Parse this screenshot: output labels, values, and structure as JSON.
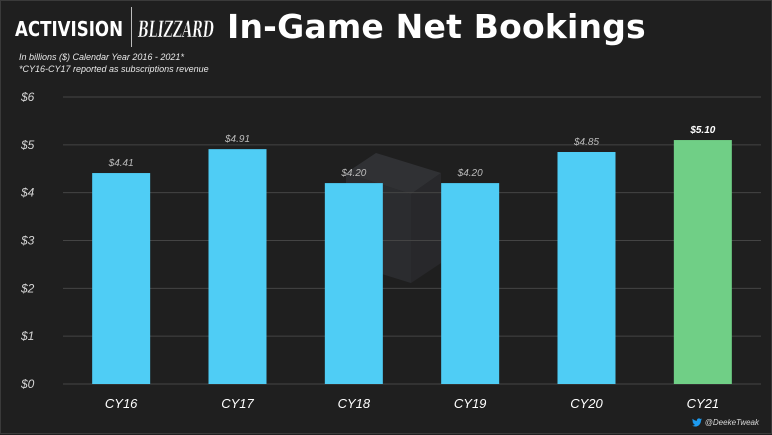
{
  "header": {
    "logo_left_text": "ACTIVISION",
    "logo_right_text": "BLIZZARD",
    "title": "In-Game Net Bookings",
    "subtitle_1": "In billions ($) Calendar Year 2016 - 2021*",
    "subtitle_2": "*CY16-CY17 reported as subscriptions revenue"
  },
  "credit": {
    "text": "@DeekeTweak",
    "icon": "twitter-icon"
  },
  "colors": {
    "background": "#1f1f1f",
    "bar": "#4fcdf5",
    "bar_highlight": "#70cf86",
    "grid": "#444444",
    "axis_label": "#d6d6d6",
    "bar_label": "#bbbbbb",
    "bar_label_highlight": "#ffffff"
  },
  "chart_data": {
    "type": "bar",
    "categories": [
      "CY16",
      "CY17",
      "CY18",
      "CY19",
      "CY20",
      "CY21"
    ],
    "values": [
      4.41,
      4.91,
      4.2,
      4.2,
      4.85,
      5.1
    ],
    "data_labels": [
      "$4.41",
      "$4.91",
      "$4.20",
      "$4.20",
      "$4.85",
      "$5.10"
    ],
    "highlight_index": 5,
    "title": "In-Game Net Bookings",
    "xlabel": "",
    "ylabel": "",
    "ylim": [
      0,
      6
    ],
    "yticks": [
      0,
      1,
      2,
      3,
      4,
      5,
      6
    ],
    "ytick_labels": [
      "$0",
      "$1",
      "$2",
      "$3",
      "$4",
      "$5",
      "$6"
    ],
    "grid": true,
    "legend": "none"
  }
}
